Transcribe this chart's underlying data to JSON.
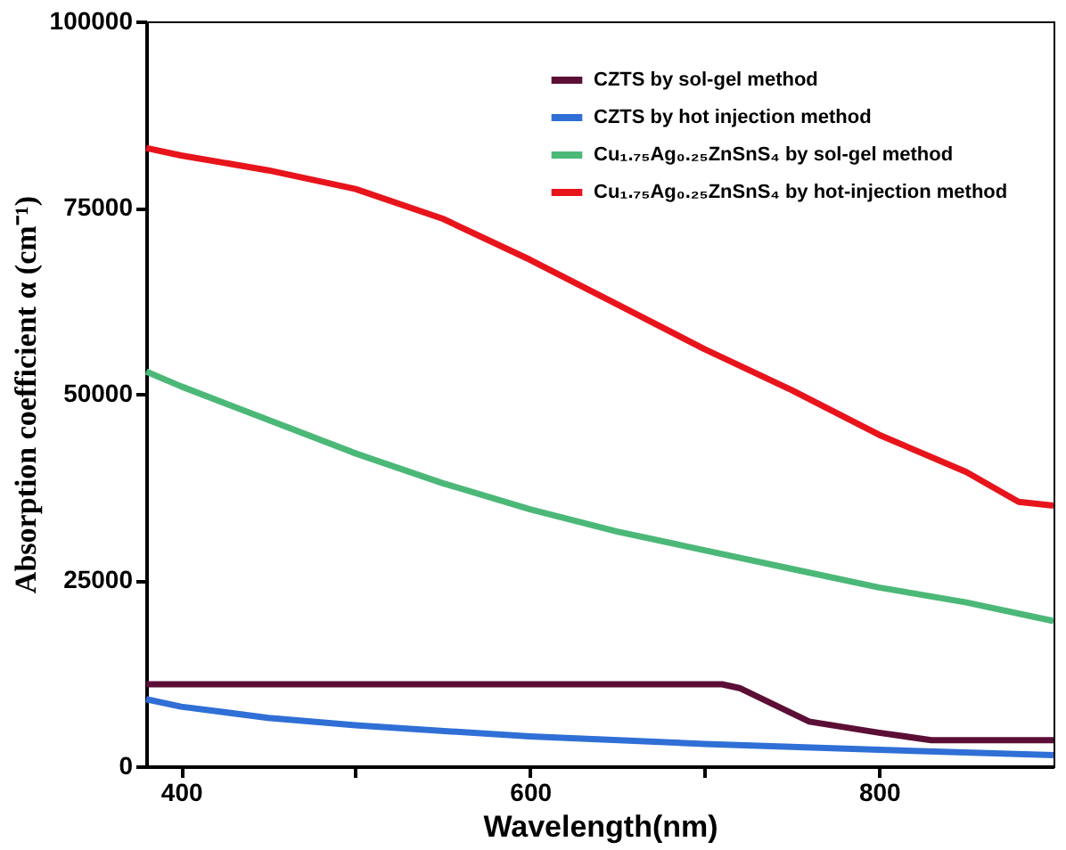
{
  "chart_data": {
    "type": "line",
    "xlabel": "Wavelength(nm)",
    "ylabel": "Absorption coefficient α (cm⁻¹)",
    "xlim": [
      380,
      900
    ],
    "xticks": [
      400,
      {
        "value": 500,
        "label": null
      },
      600,
      {
        "value": 700,
        "label": null
      },
      800
    ],
    "ylim": [
      0,
      100000
    ],
    "yticks": [
      0,
      25000,
      50000,
      75000,
      100000
    ],
    "grid": false,
    "legend": "top right",
    "marker": "none",
    "line_style": "solid",
    "series": [
      {
        "name": "CZTS by sol-gel method",
        "color": "#5c0f36",
        "x": [
          380,
          710,
          720,
          760,
          800,
          830,
          900
        ],
        "values": [
          11000,
          11000,
          10500,
          6000,
          4500,
          3500,
          3500
        ]
      },
      {
        "name": "CZTS by hot injection method",
        "color": "#2f6fd6",
        "x": [
          380,
          400,
          450,
          500,
          600,
          700,
          800,
          900
        ],
        "values": [
          9000,
          8000,
          6500,
          5500,
          4000,
          3000,
          2200,
          1500
        ]
      },
      {
        "name": "Cu₁.₇₅Ag₀.₂₅ZnSnS₄ by sol-gel method",
        "color": "#4cb878",
        "x": [
          380,
          400,
          450,
          500,
          550,
          600,
          650,
          700,
          750,
          800,
          850,
          900
        ],
        "values": [
          53000,
          51000,
          46500,
          42000,
          38000,
          34500,
          31500,
          29000,
          26500,
          24000,
          22000,
          19500
        ]
      },
      {
        "name": "Cu₁.₇₅Ag₀.₂₅ZnSnS₄ by hot-injection  method",
        "color": "#e8141c",
        "x": [
          380,
          400,
          450,
          500,
          550,
          600,
          650,
          700,
          750,
          800,
          850,
          880,
          900
        ],
        "values": [
          83000,
          82000,
          80000,
          77500,
          73500,
          68000,
          62000,
          56000,
          50500,
          44500,
          39500,
          35500,
          35000
        ]
      }
    ]
  }
}
